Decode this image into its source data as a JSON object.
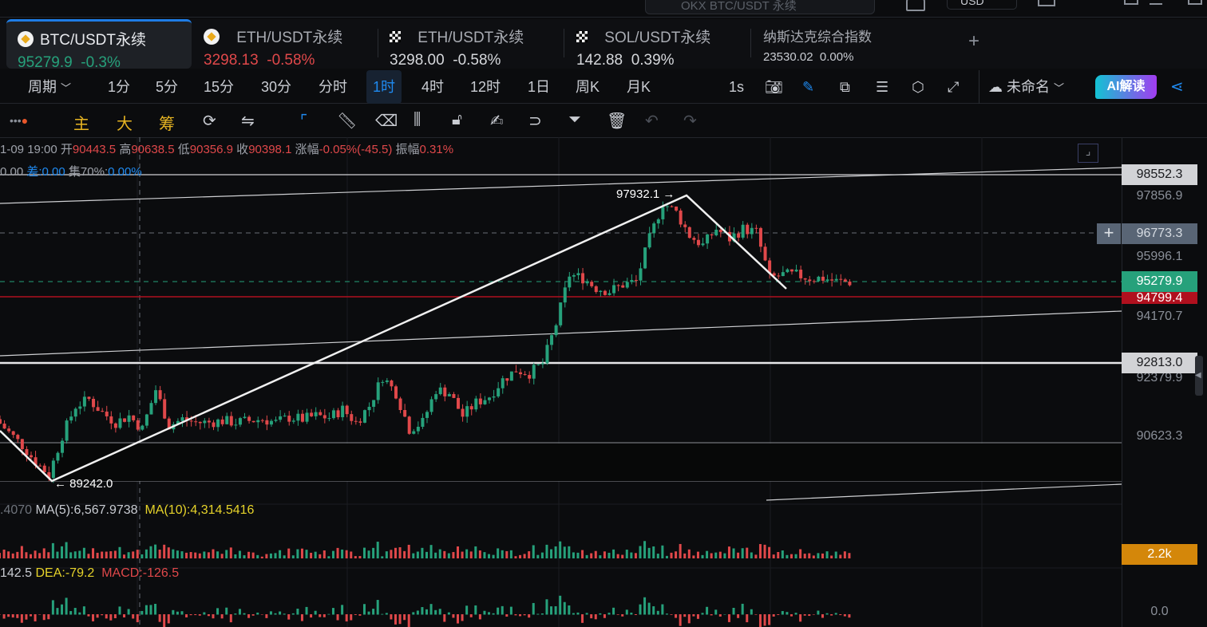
{
  "topbar": {
    "search_placeholder": "OKX BTC/USDT 永续",
    "search_shortcut": "/",
    "currency": "USD"
  },
  "tabs": [
    {
      "name": "BTC/USDT永续",
      "price": "95279.9",
      "change": "-0.3%",
      "color": "#26a17b",
      "icon": "binance-icon"
    },
    {
      "name": "ETH/USDT永续",
      "price": "3298.13",
      "change": "-0.58%",
      "color": "#e0484a",
      "icon": "binance-icon"
    },
    {
      "name": "ETH/USDT永续",
      "price": "3298.00",
      "change": "-0.58%",
      "color": "#d6d8dc",
      "icon": "okx-icon"
    },
    {
      "name": "SOL/USDT永续",
      "price": "142.88",
      "change": "0.39%",
      "color": "#d6d8dc",
      "icon": "okx-icon"
    },
    {
      "name": "纳斯达克综合指数",
      "price": "23530.02",
      "change": "0.00%",
      "color": "#c9ccd2",
      "icon": ""
    }
  ],
  "add_tab": "+",
  "periods": {
    "label": "周期",
    "items": [
      "1分",
      "5分",
      "15分",
      "30分",
      "分时",
      "1时",
      "4时",
      "12时",
      "1日",
      "周K",
      "月K"
    ],
    "active": "1时",
    "interval": "1s"
  },
  "layout_name": "未命名",
  "ai_button": "AI解读",
  "indicators": {
    "main": "主",
    "big": "大",
    "chips": "筹"
  },
  "ohlc": {
    "time": "1-09 19:00",
    "open_label": "开",
    "open": "90443.5",
    "high_label": "高",
    "high": "90638.5",
    "low_label": "低",
    "low": "90356.9",
    "close_label": "收",
    "close": "90398.1",
    "change_label": "涨幅",
    "change": "-0.05%(-45.5)",
    "amp_label": "振幅",
    "amp": "0.31%"
  },
  "chip_info": {
    "prefix": "0.00",
    "diff": "差:0.00",
    "conc_label": "集70%:",
    "conc": "0.00%"
  },
  "volume_info": {
    "prefix": ".4070",
    "ma5": "MA(5):6,567.9738",
    "ma10": "MA(10):4,314.5416"
  },
  "macd_info": {
    "dif": "142.5",
    "dea": "DEA:-79.2",
    "macd": "MACD:-126.5"
  },
  "price_axis": {
    "ticks": [
      "97856.9",
      "95996.1",
      "94170.7",
      "92379.9",
      "90623.3"
    ],
    "badges": {
      "line_top": "98552.3",
      "crosshair": "96773.3",
      "last": "95279.9",
      "red": "94799.4",
      "support": "92813.0",
      "volume": "2.2k",
      "macd_zero": "0.0"
    }
  },
  "annotations": {
    "high": "97932.1",
    "low": "89242.0"
  },
  "colors": {
    "up": "#26a17b",
    "down": "#e0484a",
    "accent": "#1f8af0",
    "ma10": "#e6d32a",
    "volume_badge": "#d4870a"
  },
  "chart_data": {
    "type": "candlestick",
    "symbol": "BTC/USDT永续",
    "interval": "1时",
    "approx_closes": [
      91100,
      90700,
      90300,
      89800,
      89400,
      90600,
      91500,
      91700,
      91300,
      91000,
      91200,
      90800,
      92000,
      90900,
      91100,
      91000,
      91000,
      91050,
      91000,
      91050,
      91100,
      91000,
      91150,
      91100,
      91200,
      91150,
      91400,
      91000,
      91500,
      92400,
      91900,
      90800,
      91000,
      92000,
      91900,
      91200,
      91600,
      91800,
      92300,
      92600,
      92500,
      92800,
      94000,
      95500,
      95400,
      95100,
      95000,
      95200,
      95300,
      96600,
      97700,
      97400,
      96700,
      96400,
      96900,
      96600,
      96900,
      96800,
      95400,
      95500,
      95500,
      95400,
      95400,
      95300,
      95280
    ]
  }
}
